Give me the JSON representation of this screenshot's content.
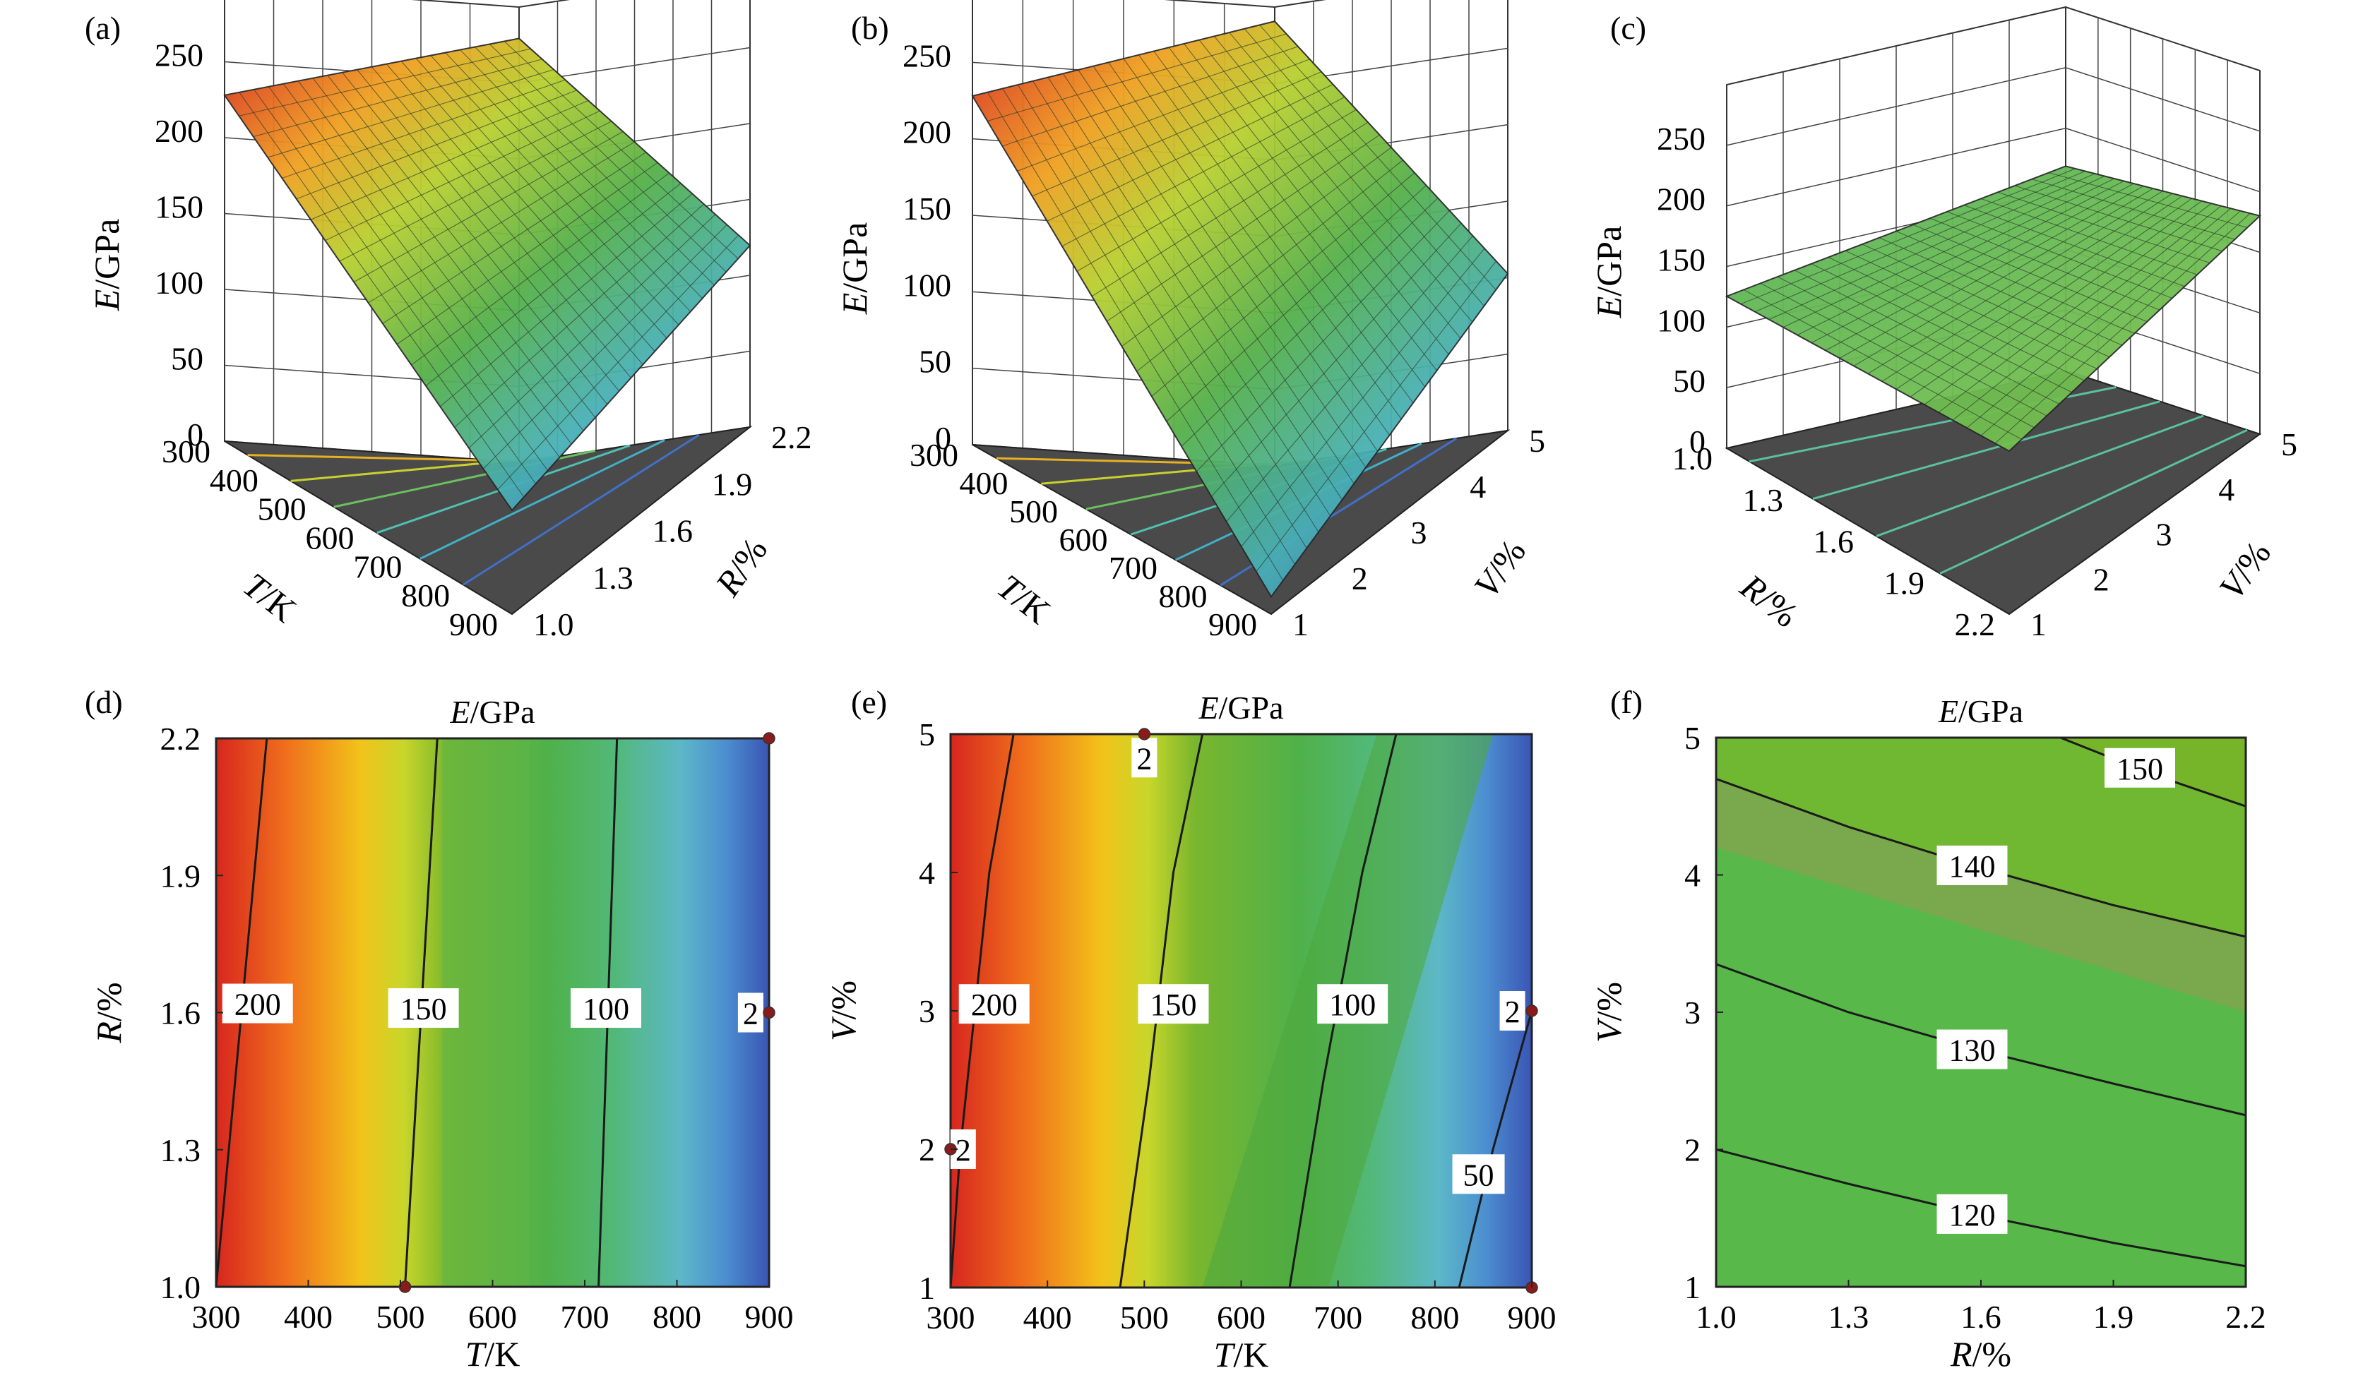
{
  "panels": [
    {
      "id": "a",
      "label": "(a)",
      "kind": "surface",
      "xvar": "T",
      "yvar": "R",
      "xlabel_i": "T",
      "xlabel_u": "/K",
      "ylabel_i": "R",
      "ylabel_u": "/%",
      "zlabel_i": "E",
      "zlabel_u": "/GPa",
      "xticks": [
        "300",
        "400",
        "500",
        "600",
        "700",
        "800",
        "900"
      ],
      "yticks": [
        "1.0",
        "1.3",
        "1.6",
        "1.9",
        "2.2"
      ],
      "zticks": [
        "0",
        "50",
        "100",
        "150",
        "200",
        "250"
      ],
      "xlim": [
        300,
        900
      ],
      "ylim": [
        1.0,
        2.2
      ],
      "zlim": [
        0,
        250
      ],
      "surface_corners": {
        "x0y0": 200,
        "x1y0": 60,
        "x0y1": 245,
        "x1y1": 105
      }
    },
    {
      "id": "b",
      "label": "(b)",
      "kind": "surface",
      "xvar": "T",
      "yvar": "V",
      "xlabel_i": "T",
      "xlabel_u": "/K",
      "ylabel_i": "V",
      "ylabel_u": "/%",
      "zlabel_i": "E",
      "zlabel_u": "/GPa",
      "xticks": [
        "300",
        "400",
        "500",
        "600",
        "700",
        "800",
        "900"
      ],
      "yticks": [
        "1",
        "2",
        "3",
        "4",
        "5"
      ],
      "zticks": [
        "0",
        "50",
        "100",
        "150",
        "200",
        "250"
      ],
      "xlim": [
        300,
        900
      ],
      "ylim": [
        1,
        5
      ],
      "zlim": [
        0,
        250
      ],
      "surface_corners": {
        "x0y0": 200,
        "x1y0": 10,
        "x0y1": 255,
        "x1y1": 90
      }
    },
    {
      "id": "c",
      "label": "(c)",
      "kind": "surface",
      "xvar": "R",
      "yvar": "V",
      "xlabel_i": "R",
      "xlabel_u": "/%",
      "ylabel_i": "V",
      "ylabel_u": "/%",
      "zlabel_i": "E",
      "zlabel_u": "/GPa",
      "xticks": [
        "1.0",
        "1.3",
        "1.6",
        "1.9",
        "2.2"
      ],
      "yticks": [
        "1",
        "2",
        "3",
        "4",
        "5"
      ],
      "zticks": [
        "0",
        "50",
        "100",
        "150",
        "200",
        "250"
      ],
      "xlim": [
        1.0,
        2.2
      ],
      "ylim": [
        1,
        5
      ],
      "zlim": [
        0,
        250
      ],
      "surface_corners": {
        "x0y0": 110,
        "x1y0": 118,
        "x0y1": 148,
        "x1y1": 158
      }
    },
    {
      "id": "d",
      "label": "(d)",
      "kind": "contour",
      "title": "E/GPa",
      "title_i": "E",
      "title_u": "/GPa",
      "xlabel_i": "T",
      "xlabel_u": "/K",
      "ylabel_i": "R",
      "ylabel_u": "/%",
      "xticks": [
        "300",
        "400",
        "500",
        "600",
        "700",
        "800",
        "900"
      ],
      "yticks": [
        "1.0",
        "1.3",
        "1.6",
        "1.9",
        "2.2"
      ],
      "xlim": [
        300,
        900
      ],
      "ylim": [
        1.0,
        2.2
      ],
      "contours": [
        {
          "level": "200",
          "pts": [
            [
              300,
              1.0
            ],
            [
              355,
              2.2
            ]
          ],
          "label_at": [
            345,
            1.62
          ]
        },
        {
          "level": "150",
          "pts": [
            [
              505,
              1.0
            ],
            [
              540,
              2.2
            ]
          ],
          "label_at": [
            525,
            1.61
          ]
        },
        {
          "level": "100",
          "pts": [
            [
              715,
              1.0
            ],
            [
              735,
              2.2
            ]
          ],
          "label_at": [
            723,
            1.61
          ]
        }
      ],
      "side_labels": [
        {
          "text": "2",
          "at": [
            880,
            1.6
          ]
        }
      ],
      "points": [
        [
          900,
          2.2
        ],
        [
          900,
          1.6
        ],
        [
          505,
          1.0
        ]
      ]
    },
    {
      "id": "e",
      "label": "(e)",
      "kind": "contour",
      "title": "E/GPa",
      "title_i": "E",
      "title_u": "/GPa",
      "xlabel_i": "T",
      "xlabel_u": "/K",
      "ylabel_i": "V",
      "ylabel_u": "/%",
      "xticks": [
        "300",
        "400",
        "500",
        "600",
        "700",
        "800",
        "900"
      ],
      "yticks": [
        "1",
        "2",
        "3",
        "4",
        "5"
      ],
      "xlim": [
        300,
        900
      ],
      "ylim": [
        1,
        5
      ],
      "contours": [
        {
          "level": "200",
          "pts": [
            [
              300,
              1.0
            ],
            [
              310,
              2.0
            ],
            [
              340,
              4.0
            ],
            [
              365,
              5.0
            ]
          ],
          "label_at": [
            345,
            3.05
          ]
        },
        {
          "level": "150",
          "pts": [
            [
              475,
              1.0
            ],
            [
              505,
              2.5
            ],
            [
              530,
              4.0
            ],
            [
              560,
              5.0
            ]
          ],
          "label_at": [
            530,
            3.05
          ]
        },
        {
          "level": "100",
          "pts": [
            [
              650,
              1.0
            ],
            [
              685,
              2.5
            ],
            [
              725,
              4.0
            ],
            [
              760,
              5.0
            ]
          ],
          "label_at": [
            715,
            3.05
          ]
        },
        {
          "level": "50",
          "pts": [
            [
              825,
              1.0
            ],
            [
              860,
              2.0
            ],
            [
              900,
              3.0
            ]
          ],
          "label_at": [
            845,
            1.82
          ]
        }
      ],
      "side_labels": [
        {
          "text": "2",
          "at": [
            500,
            4.83
          ]
        },
        {
          "text": "2",
          "at": [
            880,
            3.0
          ]
        },
        {
          "text": "2",
          "at": [
            313,
            2.0
          ]
        }
      ],
      "points": [
        [
          500,
          5.0
        ],
        [
          900,
          3.0
        ],
        [
          300,
          2.0
        ],
        [
          900,
          1.0
        ]
      ]
    },
    {
      "id": "f",
      "label": "(f)",
      "kind": "contour",
      "title": "E/GPa",
      "title_i": "E",
      "title_u": "/GPa",
      "xlabel_i": "R",
      "xlabel_u": "/%",
      "ylabel_i": "V",
      "ylabel_u": "/%",
      "xticks": [
        "1.0",
        "1.3",
        "1.6",
        "1.9",
        "2.2"
      ],
      "yticks": [
        "1",
        "2",
        "3",
        "4",
        "5"
      ],
      "xlim": [
        1.0,
        2.2
      ],
      "ylim": [
        1,
        5
      ],
      "contours": [
        {
          "level": "150",
          "pts": [
            [
              1.78,
              5.0
            ],
            [
              2.0,
              4.72
            ],
            [
              2.2,
              4.5
            ]
          ],
          "label_at": [
            1.96,
            4.78
          ]
        },
        {
          "level": "140",
          "pts": [
            [
              1.0,
              4.7
            ],
            [
              1.3,
              4.35
            ],
            [
              1.6,
              4.05
            ],
            [
              1.9,
              3.78
            ],
            [
              2.2,
              3.55
            ]
          ],
          "label_at": [
            1.58,
            4.07
          ]
        },
        {
          "level": "130",
          "pts": [
            [
              1.0,
              3.35
            ],
            [
              1.3,
              3.0
            ],
            [
              1.6,
              2.72
            ],
            [
              1.9,
              2.48
            ],
            [
              2.2,
              2.25
            ]
          ],
          "label_at": [
            1.58,
            2.73
          ]
        },
        {
          "level": "120",
          "pts": [
            [
              1.0,
              2.0
            ],
            [
              1.3,
              1.75
            ],
            [
              1.6,
              1.52
            ],
            [
              1.9,
              1.32
            ],
            [
              2.2,
              1.15
            ]
          ],
          "label_at": [
            1.58,
            1.53
          ]
        }
      ],
      "side_labels": [],
      "points": []
    }
  ]
}
